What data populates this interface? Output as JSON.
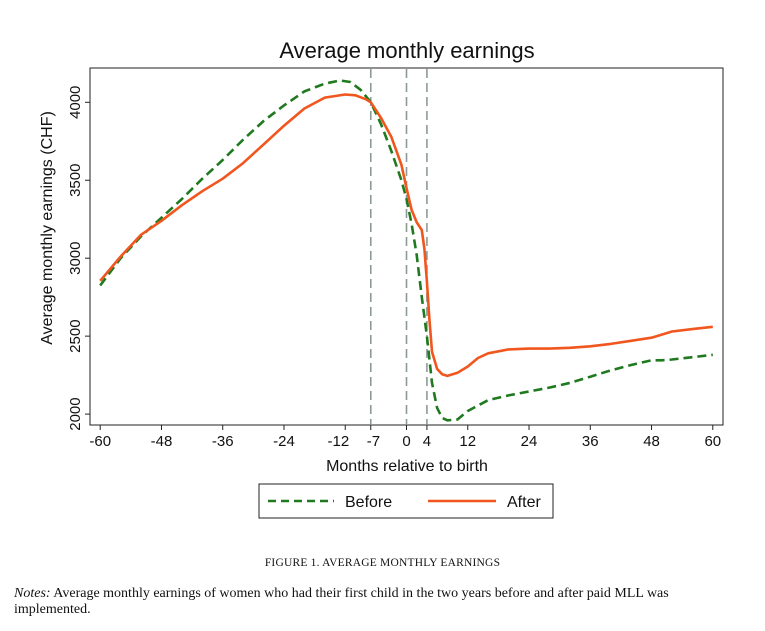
{
  "chart_data": {
    "type": "line",
    "title": "Average monthly earnings",
    "xlabel": "Months relative to birth",
    "ylabel": "Average monthly earnings (CHF)",
    "xlim": [
      -62,
      62
    ],
    "ylim": [
      1930,
      4220
    ],
    "xticks": [
      -60,
      -48,
      -36,
      -24,
      -12,
      -7,
      0,
      4,
      12,
      24,
      36,
      48,
      60
    ],
    "xtick_labels": [
      "-60",
      "-48",
      "-36",
      "-24",
      "-12",
      "-7",
      "0",
      "4",
      "12",
      "24",
      "36",
      "48",
      "60"
    ],
    "yticks": [
      2000,
      2500,
      3000,
      3500,
      4000
    ],
    "ytick_labels": [
      "2000",
      "2500",
      "3000",
      "3500",
      "4000"
    ],
    "vlines": [
      -7,
      0,
      4
    ],
    "legend_position": "bottom",
    "colors": {
      "before": "#1f7a1f",
      "after": "#f0561e",
      "vline": "#8c9a95"
    },
    "series": [
      {
        "name": "Before",
        "style": "dashed",
        "x": [
          -60,
          -56,
          -52,
          -48,
          -44,
          -40,
          -36,
          -32,
          -28,
          -24,
          -20,
          -16,
          -13,
          -11,
          -9,
          -7,
          -5,
          -3,
          -1,
          0,
          1,
          2,
          3,
          4,
          5,
          6,
          7,
          8,
          10,
          12,
          16,
          20,
          24,
          28,
          32,
          36,
          40,
          44,
          48,
          50,
          52,
          56,
          60
        ],
        "y": [
          2825,
          3000,
          3140,
          3260,
          3380,
          3510,
          3630,
          3760,
          3880,
          3980,
          4070,
          4120,
          4140,
          4130,
          4080,
          4000,
          3860,
          3690,
          3500,
          3380,
          3220,
          3020,
          2750,
          2500,
          2200,
          2040,
          1975,
          1960,
          1965,
          2020,
          2090,
          2120,
          2145,
          2170,
          2200,
          2240,
          2280,
          2315,
          2345,
          2345,
          2350,
          2365,
          2380
        ]
      },
      {
        "name": "After",
        "style": "solid",
        "x": [
          -60,
          -56,
          -52,
          -48,
          -44,
          -40,
          -36,
          -32,
          -28,
          -24,
          -20,
          -16,
          -12,
          -10,
          -8,
          -7,
          -5,
          -3,
          -1,
          0,
          1,
          2,
          3,
          3.5,
          4,
          4.5,
          5,
          6,
          7,
          8,
          10,
          12,
          14,
          16,
          20,
          24,
          28,
          32,
          36,
          40,
          44,
          48,
          52,
          56,
          60
        ],
        "y": [
          2855,
          3010,
          3150,
          3240,
          3340,
          3430,
          3510,
          3610,
          3730,
          3850,
          3960,
          4030,
          4050,
          4045,
          4020,
          4000,
          3900,
          3780,
          3600,
          3450,
          3310,
          3230,
          3180,
          3060,
          2850,
          2600,
          2400,
          2290,
          2255,
          2245,
          2265,
          2305,
          2360,
          2390,
          2415,
          2420,
          2420,
          2425,
          2435,
          2450,
          2470,
          2490,
          2530,
          2545,
          2560
        ]
      }
    ]
  },
  "figure": {
    "caption": "FIGURE 1. AVERAGE MONTHLY EARNINGS",
    "notes_label": "Notes:",
    "notes_text": "Average monthly earnings of women who had their first child in the two years before and after paid MLL was implemented."
  }
}
